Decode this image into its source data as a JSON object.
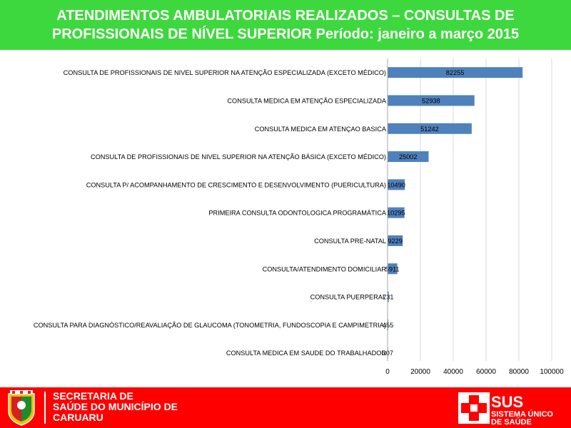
{
  "header": {
    "title_line1": "ATENDIMENTOS AMBULATORIAIS REALIZADOS – CONSULTAS DE",
    "title_line2": "PROFISSIONAIS DE NÍVEL SUPERIOR Período: janeiro a março 2015"
  },
  "chart_data": {
    "type": "bar",
    "orientation": "horizontal",
    "categories": [
      "CONSULTA DE PROFISSIONAIS DE NIVEL SUPERIOR NA ATENÇÃO ESPECIALIZADA (EXCETO MÉDICO)",
      "CONSULTA MEDICA EM ATENÇÃO ESPECIALIZADA",
      "CONSULTA MEDICA EM ATENÇAO BASICA",
      "CONSULTA DE PROFISSIONAIS DE NIVEL SUPERIOR NA ATENÇÃO BÁSICA (EXCETO MÉDICO)",
      "CONSULTA P/ ACOMPANHAMENTO DE CRESCIMENTO E DESENVOLVIMENTO (PUERICULTURA)",
      "PRIMEIRA CONSULTA ODONTOLOGICA PROGRAMÁTICA",
      "CONSULTA PRE-NATAL",
      "CONSULTA/ATENDIMENTO DOMICILIAR",
      "CONSULTA PUERPERAL",
      "CONSULTA PARA DIAGNÓSTICO/REAVALIAÇÃO DE GLAUCOMA (TONOMETRIA, FUNDOSCOPIA E CAMPIMETRIA)",
      "CONSULTA MEDICA EM SAUDE DO TRABALHADOR"
    ],
    "values": [
      82255,
      52938,
      51242,
      25002,
      10490,
      10295,
      9229,
      5911,
      731,
      455,
      307
    ],
    "xlim": [
      0,
      100000
    ],
    "xticks": [
      0,
      20000,
      40000,
      60000,
      80000,
      100000
    ],
    "grid": true,
    "bar_color": "#4f81bd",
    "grid_color": "#d9d9d9"
  },
  "footer": {
    "secretaria_line1": "SECRETARIA DE",
    "secretaria_line2": "SAÚDE DO MUNICÍPIO DE",
    "secretaria_line3": "CARUARU",
    "sus_acronym": "SUS",
    "sus_line1": "SISTEMA ÚNICO",
    "sus_line2": "DE SAÚDE",
    "background_color": "#ff0000",
    "header_color": "#3dd83d"
  }
}
